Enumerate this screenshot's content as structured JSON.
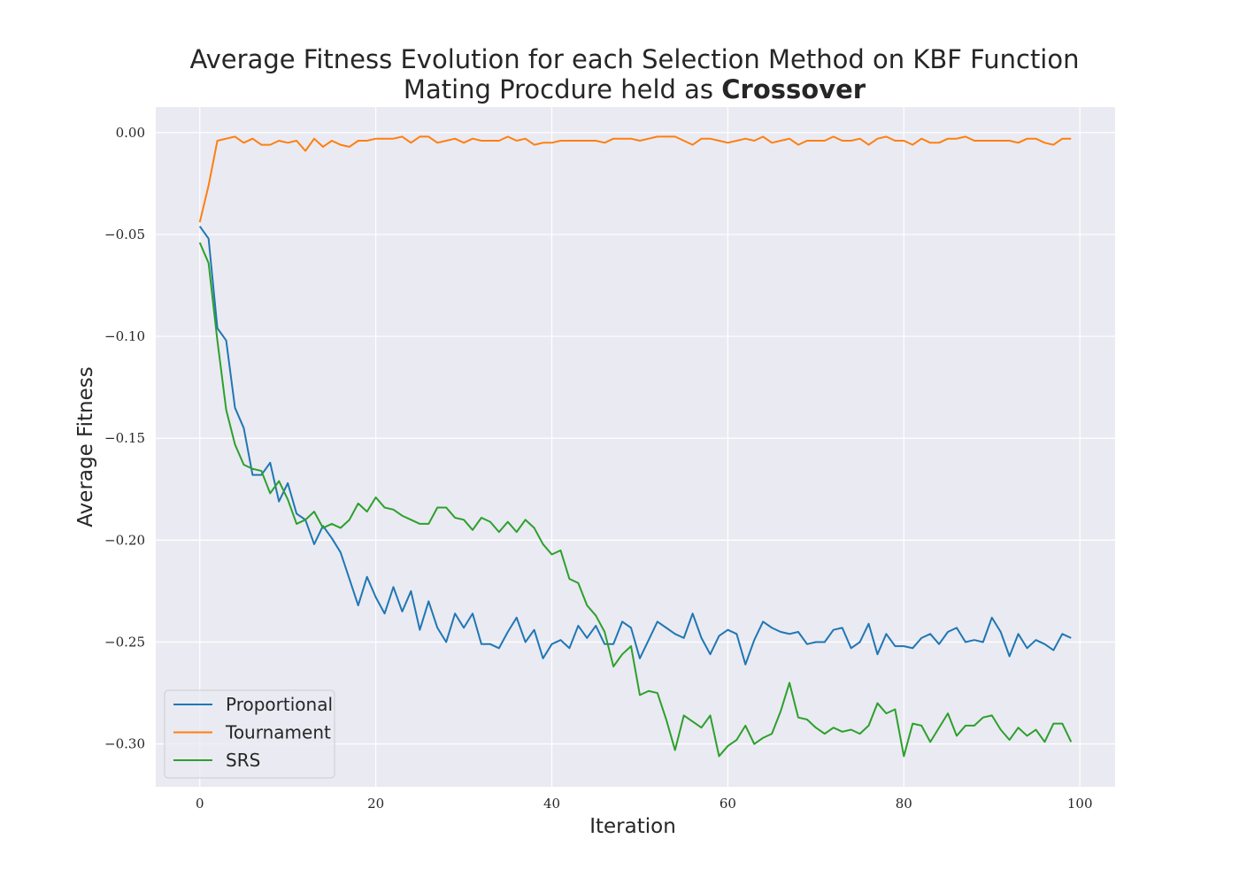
{
  "chart_data": {
    "type": "line",
    "title": "Average Fitness Evolution for each Selection Method on KBF Function",
    "subtitle_prefix": "Mating Procdure held as ",
    "subtitle_bold": "Crossover",
    "xlabel": "Iteration",
    "ylabel": "Average Fitness",
    "xlim": [
      -5,
      104
    ],
    "ylim": [
      -0.321,
      0.0125
    ],
    "xticks": [
      0,
      20,
      40,
      60,
      80,
      100
    ],
    "xtick_labels": [
      "0",
      "20",
      "40",
      "60",
      "80",
      "100"
    ],
    "yticks": [
      0.0,
      -0.05,
      -0.1,
      -0.15,
      -0.2,
      -0.25,
      -0.3
    ],
    "ytick_labels": [
      "0.00",
      "−0.05",
      "−0.10",
      "−0.15",
      "−0.20",
      "−0.25",
      "−0.30"
    ],
    "grid": true,
    "background": "#eaeaf2",
    "legend_position": "lower-left",
    "x": [
      0,
      1,
      2,
      3,
      4,
      5,
      6,
      7,
      8,
      9,
      10,
      11,
      12,
      13,
      14,
      15,
      16,
      17,
      18,
      19,
      20,
      21,
      22,
      23,
      24,
      25,
      26,
      27,
      28,
      29,
      30,
      31,
      32,
      33,
      34,
      35,
      36,
      37,
      38,
      39,
      40,
      41,
      42,
      43,
      44,
      45,
      46,
      47,
      48,
      49,
      50,
      51,
      52,
      53,
      54,
      55,
      56,
      57,
      58,
      59,
      60,
      61,
      62,
      63,
      64,
      65,
      66,
      67,
      68,
      69,
      70,
      71,
      72,
      73,
      74,
      75,
      76,
      77,
      78,
      79,
      80,
      81,
      82,
      83,
      84,
      85,
      86,
      87,
      88,
      89,
      90,
      91,
      92,
      93,
      94,
      95,
      96,
      97,
      98,
      99
    ],
    "series": [
      {
        "name": "Proportional",
        "color": "#1f77b4",
        "values": [
          -0.046,
          -0.052,
          -0.096,
          -0.102,
          -0.135,
          -0.145,
          -0.168,
          -0.168,
          -0.162,
          -0.181,
          -0.172,
          -0.187,
          -0.19,
          -0.202,
          -0.193,
          -0.199,
          -0.206,
          -0.219,
          -0.232,
          -0.218,
          -0.228,
          -0.236,
          -0.223,
          -0.235,
          -0.225,
          -0.244,
          -0.23,
          -0.243,
          -0.25,
          -0.236,
          -0.243,
          -0.236,
          -0.251,
          -0.251,
          -0.253,
          -0.245,
          -0.238,
          -0.25,
          -0.244,
          -0.258,
          -0.251,
          -0.249,
          -0.253,
          -0.242,
          -0.248,
          -0.242,
          -0.251,
          -0.251,
          -0.24,
          -0.243,
          -0.258,
          -0.249,
          -0.24,
          -0.243,
          -0.246,
          -0.248,
          -0.236,
          -0.248,
          -0.256,
          -0.247,
          -0.244,
          -0.246,
          -0.261,
          -0.249,
          -0.24,
          -0.243,
          -0.245,
          -0.246,
          -0.245,
          -0.251,
          -0.25,
          -0.25,
          -0.244,
          -0.243,
          -0.253,
          -0.25,
          -0.241,
          -0.256,
          -0.246,
          -0.252,
          -0.252,
          -0.253,
          -0.248,
          -0.246,
          -0.251,
          -0.245,
          -0.243,
          -0.25,
          -0.249,
          -0.25,
          -0.238,
          -0.245,
          -0.257,
          -0.246,
          -0.253,
          -0.249,
          -0.251,
          -0.254,
          -0.246,
          -0.248
        ]
      },
      {
        "name": "Tournament",
        "color": "#ff7f0e",
        "values": [
          -0.044,
          -0.026,
          -0.004,
          -0.003,
          -0.002,
          -0.005,
          -0.003,
          -0.006,
          -0.006,
          -0.004,
          -0.005,
          -0.004,
          -0.009,
          -0.003,
          -0.007,
          -0.004,
          -0.006,
          -0.007,
          -0.004,
          -0.004,
          -0.003,
          -0.003,
          -0.003,
          -0.002,
          -0.005,
          -0.002,
          -0.002,
          -0.005,
          -0.004,
          -0.003,
          -0.005,
          -0.003,
          -0.004,
          -0.004,
          -0.004,
          -0.002,
          -0.004,
          -0.003,
          -0.006,
          -0.005,
          -0.005,
          -0.004,
          -0.004,
          -0.004,
          -0.004,
          -0.004,
          -0.005,
          -0.003,
          -0.003,
          -0.003,
          -0.004,
          -0.003,
          -0.002,
          -0.002,
          -0.002,
          -0.004,
          -0.006,
          -0.003,
          -0.003,
          -0.004,
          -0.005,
          -0.004,
          -0.003,
          -0.004,
          -0.002,
          -0.005,
          -0.004,
          -0.003,
          -0.006,
          -0.004,
          -0.004,
          -0.004,
          -0.002,
          -0.004,
          -0.004,
          -0.003,
          -0.006,
          -0.003,
          -0.002,
          -0.004,
          -0.004,
          -0.006,
          -0.003,
          -0.005,
          -0.005,
          -0.003,
          -0.003,
          -0.002,
          -0.004,
          -0.004,
          -0.004,
          -0.004,
          -0.004,
          -0.005,
          -0.003,
          -0.003,
          -0.005,
          -0.006,
          -0.003,
          -0.003
        ]
      },
      {
        "name": "SRS",
        "color": "#2ca02c",
        "values": [
          -0.054,
          -0.064,
          -0.102,
          -0.136,
          -0.153,
          -0.163,
          -0.165,
          -0.166,
          -0.177,
          -0.171,
          -0.18,
          -0.192,
          -0.19,
          -0.186,
          -0.194,
          -0.192,
          -0.194,
          -0.19,
          -0.182,
          -0.186,
          -0.179,
          -0.184,
          -0.185,
          -0.188,
          -0.19,
          -0.192,
          -0.192,
          -0.184,
          -0.184,
          -0.189,
          -0.19,
          -0.195,
          -0.189,
          -0.191,
          -0.196,
          -0.191,
          -0.196,
          -0.19,
          -0.194,
          -0.202,
          -0.207,
          -0.205,
          -0.219,
          -0.221,
          -0.232,
          -0.237,
          -0.245,
          -0.262,
          -0.256,
          -0.252,
          -0.276,
          -0.274,
          -0.275,
          -0.288,
          -0.303,
          -0.286,
          -0.289,
          -0.292,
          -0.286,
          -0.306,
          -0.301,
          -0.298,
          -0.291,
          -0.3,
          -0.297,
          -0.295,
          -0.284,
          -0.27,
          -0.287,
          -0.288,
          -0.292,
          -0.295,
          -0.292,
          -0.294,
          -0.293,
          -0.295,
          -0.291,
          -0.28,
          -0.285,
          -0.283,
          -0.306,
          -0.29,
          -0.291,
          -0.299,
          -0.292,
          -0.285,
          -0.296,
          -0.291,
          -0.291,
          -0.287,
          -0.286,
          -0.293,
          -0.298,
          -0.292,
          -0.296,
          -0.293,
          -0.299,
          -0.29,
          -0.29,
          -0.299
        ]
      }
    ]
  }
}
